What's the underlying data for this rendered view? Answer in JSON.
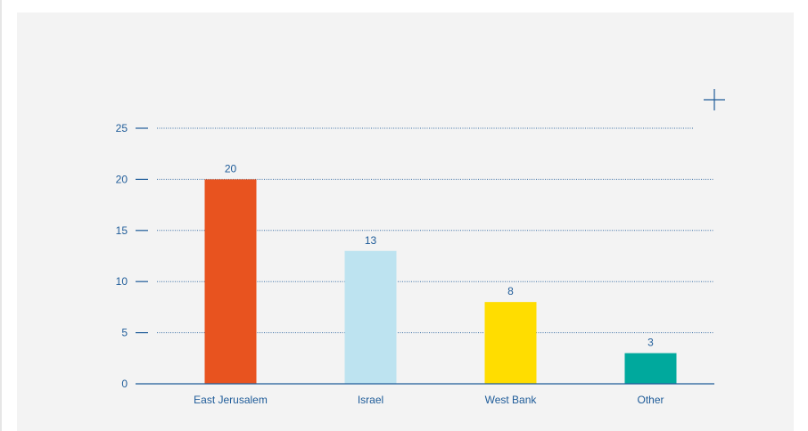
{
  "chart_data": {
    "type": "bar",
    "categories": [
      "East Jerusalem",
      "Israel",
      "West Bank",
      "Other"
    ],
    "values": [
      20,
      13,
      8,
      3
    ],
    "value_labels": [
      "20",
      "13",
      "8",
      "3"
    ],
    "bar_colors": [
      "#e8531f",
      "#bde3f0",
      "#ffdd00",
      "#00a99d"
    ],
    "yticks": [
      0,
      5,
      10,
      15,
      20,
      25
    ],
    "ylim": [
      0,
      25
    ],
    "grid": true,
    "axis_color": "#1f5c99",
    "title": "",
    "xlabel": "",
    "ylabel": ""
  },
  "controls": {
    "expand_icon": "plus-icon"
  }
}
